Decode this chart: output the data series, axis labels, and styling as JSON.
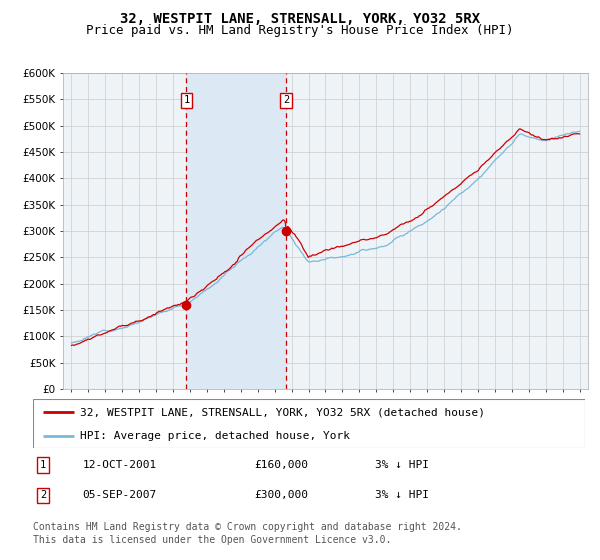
{
  "title": "32, WESTPIT LANE, STRENSALL, YORK, YO32 5RX",
  "subtitle": "Price paid vs. HM Land Registry's House Price Index (HPI)",
  "background_color": "#ffffff",
  "plot_bg_color": "#eef3f8",
  "grid_color": "#cccccc",
  "hpi_color": "#7ab8d9",
  "price_color": "#cc0000",
  "shade_color": "#dce9f5",
  "dashed_color": "#cc0000",
  "sale1_date_num": 2001.79,
  "sale1_price": 160000,
  "sale2_date_num": 2007.67,
  "sale2_price": 300000,
  "ylim": [
    0,
    600000
  ],
  "yticks": [
    0,
    50000,
    100000,
    150000,
    200000,
    250000,
    300000,
    350000,
    400000,
    450000,
    500000,
    550000,
    600000
  ],
  "xlim_start": 1994.5,
  "xlim_end": 2025.5,
  "xticks": [
    1995,
    1996,
    1997,
    1998,
    1999,
    2000,
    2001,
    2002,
    2003,
    2004,
    2005,
    2006,
    2007,
    2008,
    2009,
    2010,
    2011,
    2012,
    2013,
    2014,
    2015,
    2016,
    2017,
    2018,
    2019,
    2020,
    2021,
    2022,
    2023,
    2024,
    2025
  ],
  "legend_line1": "32, WESTPIT LANE, STRENSALL, YORK, YO32 5RX (detached house)",
  "legend_line2": "HPI: Average price, detached house, York",
  "table_row1": [
    "1",
    "12-OCT-2001",
    "£160,000",
    "3% ↓ HPI"
  ],
  "table_row2": [
    "2",
    "05-SEP-2007",
    "£300,000",
    "3% ↓ HPI"
  ],
  "footer": "Contains HM Land Registry data © Crown copyright and database right 2024.\nThis data is licensed under the Open Government Licence v3.0.",
  "title_fontsize": 10,
  "subtitle_fontsize": 9,
  "axis_fontsize": 7.5,
  "legend_fontsize": 8,
  "footer_fontsize": 7
}
